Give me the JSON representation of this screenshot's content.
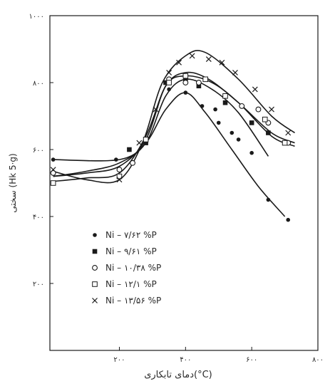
{
  "chart_data": {
    "type": "scatter",
    "xlabel": "دمای تابکاری(°C)",
    "ylabel": "سختی (Hk 5·g)",
    "xlim": [
      -10,
      800
    ],
    "ylim": [
      0,
      1000
    ],
    "x_ticks": [
      200,
      400,
      600,
      800
    ],
    "x_tick_labels": [
      "۲۰۰",
      "۴۰۰",
      "۶۰۰",
      "۸۰۰"
    ],
    "y_ticks": [
      200,
      400,
      600,
      800,
      1000
    ],
    "y_tick_labels": [
      "۲۰۰",
      "۴۰۰",
      "۶۰۰",
      "۸۰۰",
      "۱۰۰۰"
    ],
    "grid": false,
    "legend_position": "lower-left",
    "series": [
      {
        "name": "Ni – ۷/۶۲ %P",
        "marker": "filled-circle",
        "points": [
          [
            0,
            570
          ],
          [
            190,
            570
          ],
          [
            350,
            780
          ],
          [
            400,
            770
          ],
          [
            450,
            730
          ],
          [
            490,
            720
          ],
          [
            500,
            680
          ],
          [
            540,
            650
          ],
          [
            560,
            630
          ],
          [
            600,
            590
          ],
          [
            650,
            450
          ],
          [
            710,
            390
          ]
        ],
        "curve": [
          [
            0,
            570
          ],
          [
            200,
            570
          ],
          [
            280,
            620
          ],
          [
            340,
            720
          ],
          [
            400,
            770
          ],
          [
            460,
            710
          ],
          [
            540,
            600
          ],
          [
            620,
            490
          ],
          [
            700,
            400
          ]
        ]
      },
      {
        "name": "Ni – ۹/۶۱ %P",
        "marker": "filled-square",
        "points": [
          [
            230,
            600
          ],
          [
            280,
            620
          ],
          [
            340,
            800
          ],
          [
            400,
            810
          ],
          [
            440,
            790
          ],
          [
            520,
            740
          ],
          [
            600,
            680
          ],
          [
            650,
            650
          ]
        ],
        "curve": [
          [
            0,
            520
          ],
          [
            100,
            535
          ],
          [
            200,
            560
          ],
          [
            280,
            620
          ],
          [
            340,
            760
          ],
          [
            400,
            810
          ],
          [
            480,
            780
          ],
          [
            560,
            710
          ],
          [
            650,
            580
          ]
        ]
      },
      {
        "name": "Ni – ۱۰/۳۸ %P",
        "marker": "open-circle",
        "points": [
          [
            0,
            530
          ],
          [
            200,
            540
          ],
          [
            240,
            560
          ],
          [
            350,
            810
          ],
          [
            400,
            800
          ],
          [
            440,
            800
          ],
          [
            570,
            730
          ],
          [
            620,
            720
          ],
          [
            650,
            680
          ],
          [
            710,
            620
          ]
        ],
        "curve": [
          [
            0,
            520
          ],
          [
            100,
            530
          ],
          [
            200,
            550
          ],
          [
            280,
            630
          ],
          [
            340,
            790
          ],
          [
            400,
            820
          ],
          [
            480,
            800
          ],
          [
            560,
            740
          ],
          [
            660,
            640
          ],
          [
            730,
            610
          ]
        ]
      },
      {
        "name": "Ni – ۱۲/۱ %P",
        "marker": "open-square",
        "points": [
          [
            0,
            500
          ],
          [
            200,
            520
          ],
          [
            280,
            630
          ],
          [
            350,
            800
          ],
          [
            400,
            820
          ],
          [
            460,
            810
          ],
          [
            520,
            760
          ],
          [
            640,
            690
          ],
          [
            700,
            620
          ]
        ],
        "curve": [
          [
            0,
            505
          ],
          [
            100,
            515
          ],
          [
            200,
            530
          ],
          [
            280,
            640
          ],
          [
            340,
            790
          ],
          [
            400,
            830
          ],
          [
            470,
            810
          ],
          [
            560,
            740
          ],
          [
            660,
            650
          ],
          [
            730,
            620
          ]
        ]
      },
      {
        "name": "Ni – ۱۳/۵۶ %P",
        "marker": "cross",
        "points": [
          [
            0,
            540
          ],
          [
            200,
            510
          ],
          [
            260,
            620
          ],
          [
            310,
            720
          ],
          [
            350,
            830
          ],
          [
            380,
            860
          ],
          [
            420,
            880
          ],
          [
            470,
            870
          ],
          [
            510,
            860
          ],
          [
            550,
            830
          ],
          [
            610,
            780
          ],
          [
            660,
            720
          ],
          [
            710,
            650
          ]
        ],
        "curve": [
          [
            0,
            535
          ],
          [
            100,
            510
          ],
          [
            200,
            510
          ],
          [
            270,
            620
          ],
          [
            330,
            800
          ],
          [
            400,
            880
          ],
          [
            460,
            890
          ],
          [
            560,
            810
          ],
          [
            660,
            700
          ],
          [
            730,
            650
          ]
        ]
      }
    ]
  }
}
